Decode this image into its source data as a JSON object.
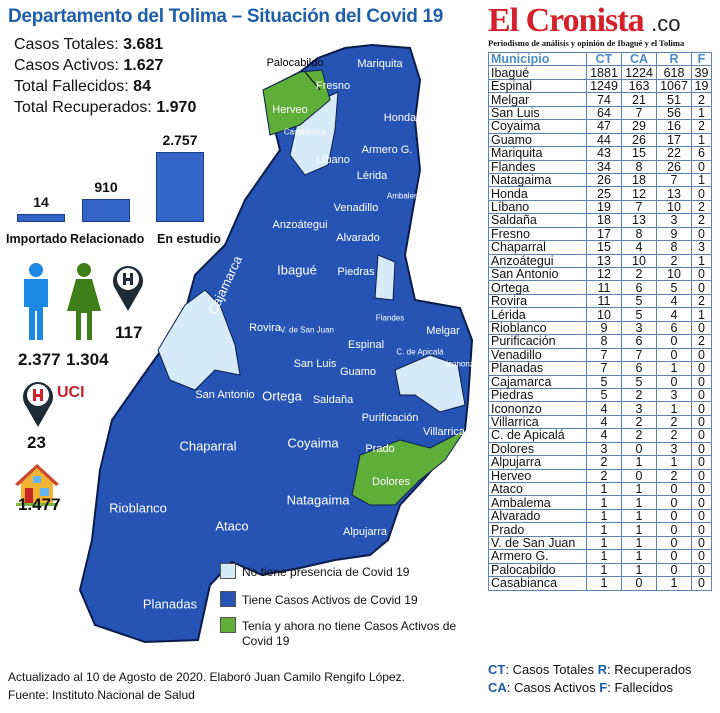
{
  "header": {
    "title": "Departamento del Tolima – Situación del Covid 19",
    "stats": [
      {
        "label": "Casos Totales:",
        "value": "3.681"
      },
      {
        "label": "Casos Activos:",
        "value": "1.627"
      },
      {
        "label": "Total Fallecidos:",
        "value": "84"
      },
      {
        "label": "Total Recuperados:",
        "value": "1.970"
      }
    ]
  },
  "origin_chart": {
    "type": "bar",
    "categories": [
      "Importado",
      "Relacionado",
      "En estudio"
    ],
    "values": [
      14,
      910,
      2757
    ],
    "value_labels": [
      "14",
      "910",
      "2.757"
    ]
  },
  "demographics": {
    "men": "2.377",
    "women": "1.304",
    "hospital": "117",
    "uci_label": "UCI",
    "uci": "23",
    "home": "1.477"
  },
  "colors": {
    "no_presence": "#d6eaf8",
    "active": "#2554b5",
    "recovered": "#5fae3a",
    "accent": "#1f5fa8",
    "brand": "#d3202a"
  },
  "map": {
    "labels": [
      "Palocabildo",
      "Fresno",
      "Mariquita",
      "Honda",
      "Herveo",
      "Casabianca",
      "Armero G.",
      "Líbano",
      "Lérida",
      "Ambalema",
      "Venadillo",
      "Anzoátegui",
      "Alvarado",
      "Ibagué",
      "Piedras",
      "Cajamarca",
      "Rovira",
      "V. de San Juan",
      "Flandes",
      "Melgar",
      "Espinal",
      "C. de Apicalá",
      "Icononzo",
      "San Luis",
      "Guamo",
      "San Antonio",
      "Ortega",
      "Saldaña",
      "Purificación",
      "Villarrica",
      "Prado",
      "Chaparral",
      "Coyaima",
      "Dolores",
      "Natagaima",
      "Rioblanco",
      "Ataco",
      "Alpujarra",
      "Planadas"
    ],
    "legend": [
      "No tiene presencia de Covid 19",
      "Tiene Casos Activos de Covid 19",
      "Tenía y ahora no tiene Casos Activos de",
      "Covid 19"
    ]
  },
  "brand": {
    "name": "El Cronista",
    "tld": ".co",
    "tagline": "Periodismo de análisis y opinión de Ibagué y el Tolima"
  },
  "table": {
    "headers": [
      "Municipio",
      "CT",
      "CA",
      "R",
      "F"
    ],
    "rows": [
      [
        "Ibagué",
        "1881",
        "1224",
        "618",
        "39"
      ],
      [
        "Espinal",
        "1249",
        "163",
        "1067",
        "19"
      ],
      [
        "Melgar",
        "74",
        "21",
        "51",
        "2"
      ],
      [
        "San Luis",
        "64",
        "7",
        "56",
        "1"
      ],
      [
        "Coyaima",
        "47",
        "29",
        "16",
        "2"
      ],
      [
        "Guamo",
        "44",
        "26",
        "17",
        "1"
      ],
      [
        "Mariquita",
        "43",
        "15",
        "22",
        "6"
      ],
      [
        "Flandes",
        "34",
        "8",
        "26",
        "0"
      ],
      [
        "Natagaima",
        "26",
        "18",
        "7",
        "1"
      ],
      [
        "Honda",
        "25",
        "12",
        "13",
        "0"
      ],
      [
        "Líbano",
        "19",
        "7",
        "10",
        "2"
      ],
      [
        "Saldaña",
        "18",
        "13",
        "3",
        "2"
      ],
      [
        "Fresno",
        "17",
        "8",
        "9",
        "0"
      ],
      [
        "Chaparral",
        "15",
        "4",
        "8",
        "3"
      ],
      [
        "Anzoátegui",
        "13",
        "10",
        "2",
        "1"
      ],
      [
        "San Antonio",
        "12",
        "2",
        "10",
        "0"
      ],
      [
        "Ortega",
        "11",
        "6",
        "5",
        "0"
      ],
      [
        "Rovira",
        "11",
        "5",
        "4",
        "2"
      ],
      [
        "Lérida",
        "10",
        "5",
        "4",
        "1"
      ],
      [
        "Rioblanco",
        "9",
        "3",
        "6",
        "0"
      ],
      [
        "Purificación",
        "8",
        "6",
        "0",
        "2"
      ],
      [
        "Venadillo",
        "7",
        "7",
        "0",
        "0"
      ],
      [
        "Planadas",
        "7",
        "6",
        "1",
        "0"
      ],
      [
        "Cajamarca",
        "5",
        "5",
        "0",
        "0"
      ],
      [
        "Piedras",
        "5",
        "2",
        "3",
        "0"
      ],
      [
        "Icononzo",
        "4",
        "3",
        "1",
        "0"
      ],
      [
        "Villarrica",
        "4",
        "2",
        "2",
        "0"
      ],
      [
        "C. de Apicalá",
        "4",
        "2",
        "2",
        "0"
      ],
      [
        "Dolores",
        "3",
        "0",
        "3",
        "0"
      ],
      [
        "Alpujarra",
        "2",
        "1",
        "1",
        "0"
      ],
      [
        "Herveo",
        "2",
        "0",
        "2",
        "0"
      ],
      [
        "Ataco",
        "1",
        "1",
        "0",
        "0"
      ],
      [
        "Ambalema",
        "1",
        "1",
        "0",
        "0"
      ],
      [
        "Alvarado",
        "1",
        "1",
        "0",
        "0"
      ],
      [
        "Prado",
        "1",
        "1",
        "0",
        "0"
      ],
      [
        "V. de San Juan",
        "1",
        "1",
        "0",
        "0"
      ],
      [
        "Armero G.",
        "1",
        "1",
        "0",
        "0"
      ],
      [
        "Palocabildo",
        "1",
        "1",
        "0",
        "0"
      ],
      [
        "Casabianca",
        "1",
        "0",
        "1",
        "0"
      ]
    ]
  },
  "key": [
    {
      "abbr": "CT",
      "text": ": Casos Totales"
    },
    {
      "abbr": "R",
      "text": ": Recuperados"
    },
    {
      "abbr": "CA",
      "text": ": Casos Activos"
    },
    {
      "abbr": "F",
      "text": ": Fallecidos"
    }
  ],
  "footer": {
    "line1": "Actualizado al 10 de Agosto de 2020. Elaboró Juan Camilo Rengifo López.",
    "line2": "Fuente: Instituto Nacional de Salud"
  }
}
